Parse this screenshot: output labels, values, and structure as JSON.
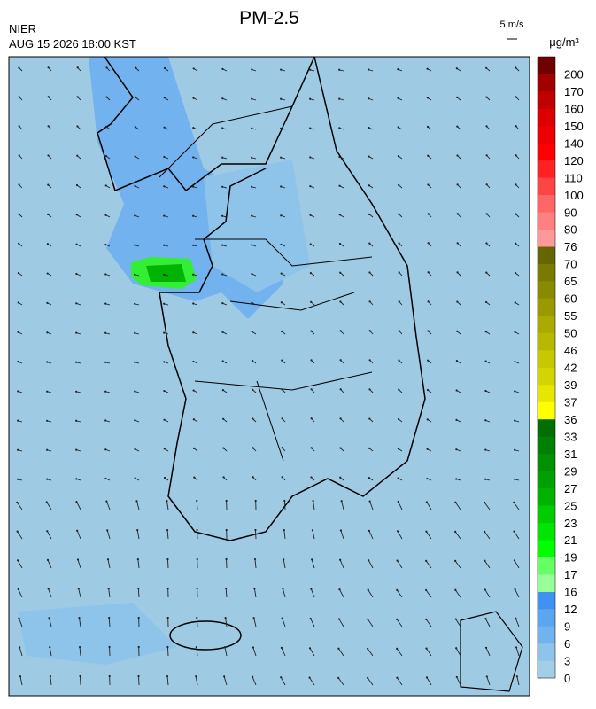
{
  "header": {
    "title": "PM-2.5",
    "agency": "NIER",
    "datetime": "AUG 15 2026 18:00 KST",
    "wind_scale": "5 m/s",
    "unit": "μg/m³"
  },
  "colorbar": {
    "labels": [
      "0",
      "3",
      "6",
      "9",
      "12",
      "16",
      "17",
      "19",
      "21",
      "23",
      "25",
      "27",
      "29",
      "31",
      "33",
      "36",
      "37",
      "39",
      "42",
      "46",
      "50",
      "55",
      "60",
      "65",
      "70",
      "76",
      "80",
      "90",
      "100",
      "110",
      "120",
      "140",
      "150",
      "160",
      "170",
      "200"
    ],
    "colors": [
      "#a3cfe6",
      "#8ec4ea",
      "#72b2ee",
      "#5ca5f0",
      "#3f92f2",
      "#99ff99",
      "#66ff66",
      "#00ff00",
      "#00e600",
      "#00cc00",
      "#00b300",
      "#00a000",
      "#009000",
      "#008000",
      "#006e00",
      "#ffff00",
      "#e6e600",
      "#d4d400",
      "#c8c800",
      "#b8b800",
      "#aaaa00",
      "#9a9a00",
      "#8a8a00",
      "#7a7a00",
      "#666600",
      "#ff9999",
      "#ff8080",
      "#ff6666",
      "#ff4444",
      "#ff2222",
      "#ff0000",
      "#ee0000",
      "#dd0000",
      "#c00000",
      "#a00000",
      "#700000"
    ]
  }
}
